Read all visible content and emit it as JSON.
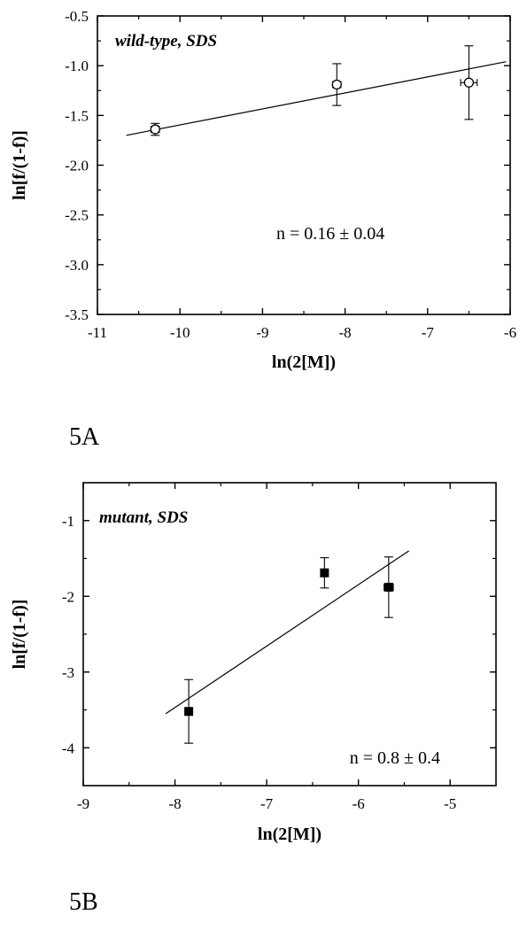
{
  "chart_data": [
    {
      "type": "scatter",
      "panel_label": "5A",
      "inset_label": "wild-type, SDS",
      "annotation": "n = 0.16 ± 0.04",
      "xlabel": "ln(2[M])",
      "ylabel": "ln[f/(1-f)]",
      "xlim": [
        -11,
        -6
      ],
      "ylim": [
        -3.5,
        -0.5
      ],
      "xticks": [
        "-11",
        "-10",
        "-9",
        "-8",
        "-7",
        "-6"
      ],
      "xtick_values": [
        -11,
        -10,
        -9,
        -8,
        -7,
        -6
      ],
      "yticks": [
        "-0.5",
        "-1.0",
        "-1.5",
        "-2.0",
        "-2.5",
        "-3.0",
        "-3.5"
      ],
      "ytick_values": [
        -0.5,
        -1.0,
        -1.5,
        -2.0,
        -2.5,
        -3.0,
        -3.5
      ],
      "marker": "open-circle",
      "points": [
        {
          "x": -10.3,
          "y": -1.64,
          "yerr": 0.06,
          "xerr": 0.05
        },
        {
          "x": -8.1,
          "y": -1.19,
          "yerr": 0.21,
          "xerr": 0.05
        },
        {
          "x": -6.5,
          "y": -1.17,
          "yerr": 0.37,
          "xerr": 0.1
        }
      ],
      "fit_line": {
        "x": [
          -10.65,
          -6.05
        ],
        "y": [
          -1.7,
          -0.96
        ]
      },
      "grid": false
    },
    {
      "type": "scatter",
      "panel_label": "5B",
      "inset_label": "mutant, SDS",
      "annotation": "n = 0.8 ± 0.4",
      "xlabel": "ln(2[M])",
      "ylabel": "ln[f/(1-f)]",
      "xlim": [
        -9,
        -4.5
      ],
      "ylim": [
        -4.5,
        -0.5
      ],
      "xticks": [
        "-9",
        "-8",
        "-7",
        "-6",
        "-5"
      ],
      "xtick_values": [
        -9,
        -8,
        -7,
        -6,
        -5
      ],
      "yticks": [
        "-1",
        "-2",
        "-3",
        "-4"
      ],
      "ytick_values": [
        -1,
        -2,
        -3,
        -4
      ],
      "marker": "filled-square",
      "points": [
        {
          "x": -7.85,
          "y": -3.52,
          "yerr": 0.42,
          "xerr": 0
        },
        {
          "x": -6.37,
          "y": -1.69,
          "yerr": 0.2,
          "xerr": 0
        },
        {
          "x": -5.67,
          "y": -1.88,
          "yerr": 0.4,
          "xerr": 0.05
        }
      ],
      "fit_line": {
        "x": [
          -8.1,
          -5.45
        ],
        "y": [
          -3.55,
          -1.4
        ]
      },
      "grid": false
    }
  ]
}
